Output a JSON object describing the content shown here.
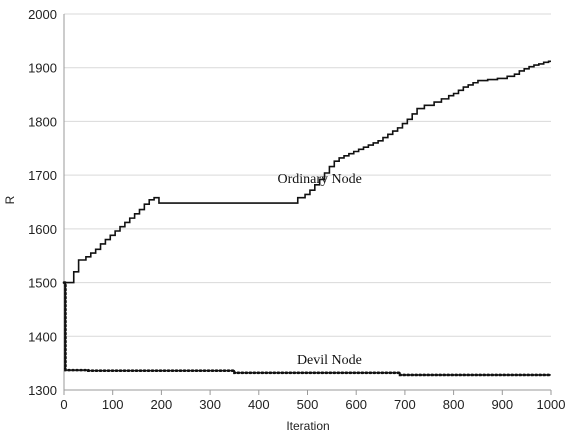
{
  "chart_data": {
    "type": "line",
    "title": "",
    "xlabel": "Iteration",
    "ylabel": "R",
    "xlim": [
      0,
      1000
    ],
    "ylim": [
      1300,
      2000
    ],
    "xticks": [
      0,
      100,
      200,
      300,
      400,
      500,
      600,
      700,
      800,
      900,
      1000
    ],
    "yticks": [
      1300,
      1400,
      1500,
      1600,
      1700,
      1800,
      1900,
      2000
    ],
    "grid": "horizontal",
    "legend": "none",
    "series": [
      {
        "name": "Ordinary Node",
        "color": "#111111",
        "style": "step",
        "x": [
          0,
          2,
          10,
          20,
          30,
          45,
          55,
          65,
          75,
          85,
          95,
          105,
          115,
          125,
          135,
          145,
          155,
          165,
          175,
          185,
          195,
          200,
          250,
          300,
          350,
          400,
          450,
          470,
          480,
          495,
          505,
          515,
          525,
          535,
          545,
          555,
          565,
          575,
          585,
          595,
          605,
          615,
          625,
          635,
          645,
          655,
          665,
          675,
          685,
          695,
          705,
          715,
          725,
          740,
          760,
          775,
          790,
          800,
          810,
          820,
          830,
          840,
          850,
          870,
          890,
          910,
          925,
          935,
          945,
          955,
          965,
          975,
          985,
          995,
          1000
        ],
        "y": [
          1340,
          1500,
          1500,
          1520,
          1542,
          1548,
          1555,
          1562,
          1572,
          1580,
          1588,
          1596,
          1604,
          1612,
          1620,
          1628,
          1636,
          1646,
          1654,
          1658,
          1648,
          1648,
          1648,
          1648,
          1648,
          1648,
          1648,
          1648,
          1658,
          1664,
          1672,
          1682,
          1692,
          1704,
          1716,
          1726,
          1732,
          1736,
          1740,
          1744,
          1748,
          1752,
          1756,
          1760,
          1764,
          1770,
          1776,
          1782,
          1788,
          1796,
          1804,
          1814,
          1824,
          1830,
          1836,
          1842,
          1848,
          1852,
          1858,
          1864,
          1868,
          1872,
          1876,
          1878,
          1880,
          1884,
          1888,
          1894,
          1898,
          1902,
          1905,
          1907,
          1910,
          1912,
          1912
        ]
      },
      {
        "name": "Devil Node",
        "color": "#111111",
        "style": "dotted-step",
        "x": [
          0,
          3,
          50,
          100,
          200,
          300,
          350,
          400,
          500,
          600,
          690,
          700,
          800,
          900,
          1000
        ],
        "y": [
          1500,
          1337,
          1336,
          1336,
          1336,
          1336,
          1332,
          1332,
          1332,
          1332,
          1328,
          1328,
          1328,
          1328,
          1328
        ]
      }
    ],
    "annotations": [
      {
        "text": "Ordinary Node",
        "x": 525,
        "y": 1685
      },
      {
        "text": "Devil Node",
        "x": 545,
        "y": 1348
      }
    ]
  }
}
